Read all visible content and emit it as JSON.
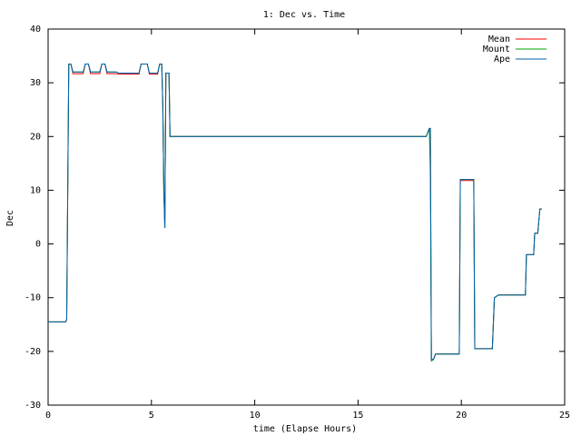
{
  "chart_data": {
    "type": "line",
    "title": "1: Dec vs. Time",
    "x_label": "time (Elapse Hours)",
    "y_label": "Dec",
    "x": [
      0,
      0.85,
      0.9,
      0.95,
      1.0,
      1.1,
      1.2,
      1.7,
      1.8,
      1.95,
      2.05,
      2.5,
      2.6,
      2.75,
      2.85,
      3.3,
      3.4,
      4.4,
      4.5,
      4.8,
      4.9,
      5.3,
      5.4,
      5.5,
      5.55,
      5.6,
      5.65,
      5.7,
      5.85,
      5.9,
      18.3,
      18.45,
      18.5,
      18.55,
      18.65,
      18.75,
      19.9,
      19.95,
      20.6,
      20.65,
      21.5,
      21.6,
      21.8,
      23.1,
      23.15,
      23.5,
      23.55,
      23.7,
      23.8,
      23.9
    ],
    "series": [
      {
        "name": "Mean",
        "color": "#ff0000",
        "values": [
          -14.5,
          -14.5,
          -14,
          10,
          33.5,
          33.5,
          31.7,
          31.7,
          33.5,
          33.5,
          31.7,
          31.7,
          33.5,
          33.5,
          31.7,
          31.7,
          31.6,
          31.6,
          33.5,
          33.5,
          31.6,
          31.6,
          33.5,
          33.5,
          26,
          10,
          3,
          31.8,
          31.8,
          20,
          20,
          21.5,
          21.5,
          -21.5,
          -21.5,
          -20.5,
          -20.5,
          11.8,
          11.8,
          -19.5,
          -19.5,
          -10,
          -9.5,
          -9.5,
          -2,
          -2,
          2,
          2,
          6.5,
          6.5
        ]
      },
      {
        "name": "Mount",
        "color": "#00a000",
        "values": [
          -14.5,
          -14.5,
          -14,
          10,
          33.5,
          33.5,
          32,
          32,
          33.5,
          33.5,
          32,
          32,
          33.5,
          33.5,
          32,
          32,
          31.8,
          31.8,
          33.5,
          33.5,
          31.8,
          31.8,
          33.5,
          33.5,
          26,
          10,
          3,
          31.8,
          31.8,
          20,
          20,
          21.5,
          13,
          -21.8,
          -21.5,
          -20.5,
          -20.5,
          12,
          12,
          -19.5,
          -19.5,
          -10,
          -9.5,
          -9.5,
          -2,
          -2,
          2,
          2,
          6.5,
          6.5
        ]
      },
      {
        "name": "Ape",
        "color": "#0060ad",
        "values": [
          -14.5,
          -14.5,
          -14,
          10,
          33.5,
          33.5,
          32,
          32,
          33.5,
          33.5,
          32,
          32,
          33.5,
          33.5,
          32,
          32,
          31.8,
          31.8,
          33.5,
          33.5,
          31.8,
          31.8,
          33.5,
          33.5,
          26,
          10,
          3,
          31.8,
          31.8,
          20,
          20,
          21.5,
          21.5,
          -21.5,
          -21.5,
          -20.5,
          -20.5,
          12,
          12,
          -19.5,
          -19.5,
          -10,
          -9.5,
          -9.5,
          -2,
          -2,
          2,
          2,
          6.5,
          6.5
        ]
      }
    ],
    "xlim": [
      0,
      25
    ],
    "xticks": [
      0,
      5,
      10,
      15,
      20,
      25
    ],
    "ylim": [
      -30,
      40
    ],
    "yticks": [
      -30,
      -20,
      -10,
      0,
      10,
      20,
      30,
      40
    ],
    "grid": false,
    "legend": "top-right"
  }
}
